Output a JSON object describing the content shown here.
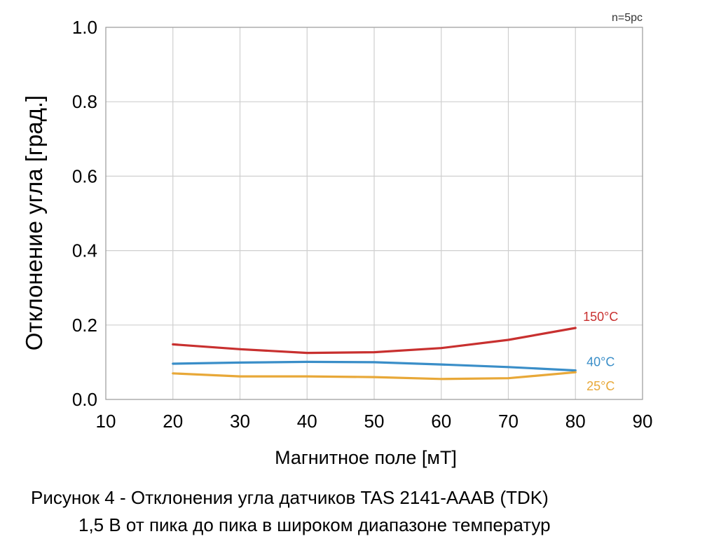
{
  "chart_data": {
    "type": "line",
    "sample_note": "n=5pc",
    "xlabel": "Магнитное поле [мТ]",
    "ylabel": "Отклонение угла [град.]",
    "xlim": [
      10,
      90
    ],
    "ylim": [
      0.0,
      1.0
    ],
    "x_ticks": [
      "10",
      "20",
      "30",
      "40",
      "50",
      "60",
      "70",
      "80",
      "90"
    ],
    "y_ticks": [
      "0.0",
      "0.2",
      "0.4",
      "0.6",
      "0.8",
      "1.0"
    ],
    "grid": true,
    "x": [
      20,
      30,
      40,
      50,
      60,
      70,
      80
    ],
    "series": [
      {
        "name": "150°C",
        "color": "#c8302f",
        "values": [
          0.148,
          0.135,
          0.125,
          0.127,
          0.138,
          0.16,
          0.192
        ]
      },
      {
        "name": "40°C",
        "color": "#3a8ec8",
        "values": [
          0.096,
          0.099,
          0.101,
          0.1,
          0.094,
          0.087,
          0.078
        ]
      },
      {
        "name": "25°C",
        "color": "#e8a838",
        "values": [
          0.07,
          0.062,
          0.062,
          0.06,
          0.055,
          0.057,
          0.073
        ]
      }
    ]
  },
  "caption": {
    "line1": "Рисунок 4 - Отклонения угла датчиков TAS 2141-AAAB (TDK)",
    "line2": "1,5 В от пика до пика в широком диапазоне температур"
  }
}
